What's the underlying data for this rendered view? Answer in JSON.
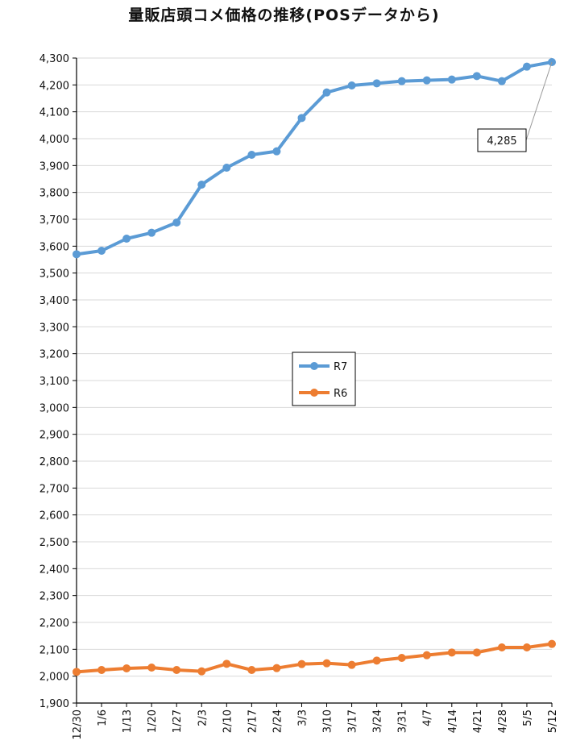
{
  "chart_data": {
    "type": "line",
    "title": "量販店頭コメ価格の推移(POSデータから)",
    "xlabel": "",
    "ylabel": "",
    "ylim": [
      1900,
      4300
    ],
    "ytick_step": 100,
    "grid": "horizontal",
    "legend_position": "center",
    "categories": [
      "12/30",
      "1/6",
      "1/13",
      "1/20",
      "1/27",
      "2/3",
      "2/10",
      "2/17",
      "2/24",
      "3/3",
      "3/10",
      "3/17",
      "3/24",
      "3/31",
      "4/7",
      "4/14",
      "4/21",
      "4/28",
      "5/5",
      "5/12"
    ],
    "series": [
      {
        "name": "R7",
        "color": "#5B9BD5",
        "values": [
          3570,
          3583,
          3628,
          3650,
          3688,
          3829,
          3892,
          3940,
          3953,
          4077,
          4172,
          4198,
          4206,
          4214,
          4217,
          4220,
          4233,
          4214,
          4268,
          4285
        ]
      },
      {
        "name": "R6",
        "color": "#ED7D31",
        "values": [
          2016,
          2023,
          2029,
          2032,
          2023,
          2018,
          2046,
          2023,
          2030,
          2045,
          2048,
          2042,
          2058,
          2068,
          2078,
          2088,
          2088,
          2107,
          2107,
          2120
        ]
      }
    ],
    "annotations": [
      {
        "series": "R7",
        "category": "5/12",
        "text": "4,285"
      }
    ]
  }
}
